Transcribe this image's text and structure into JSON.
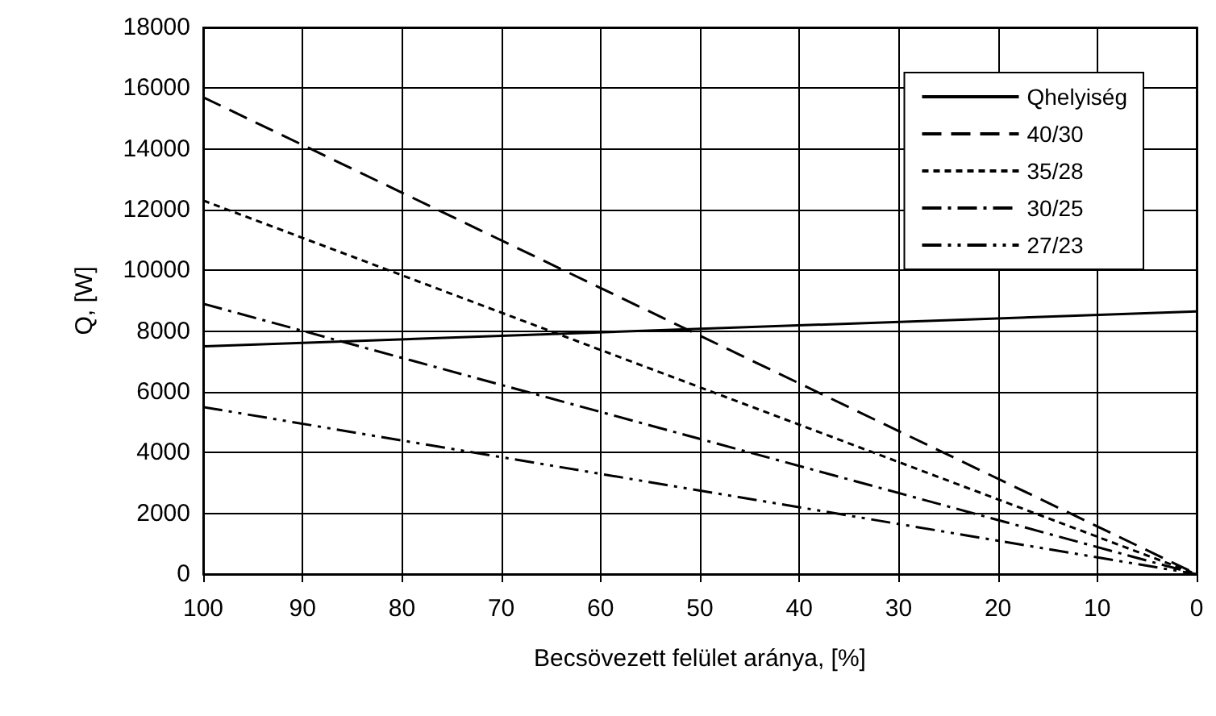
{
  "chart_data": {
    "type": "line",
    "xlabel": "Becsövezett felület aránya, [%]",
    "ylabel": "Q, [W]",
    "xlim": [
      100,
      0
    ],
    "xticks": [
      100,
      90,
      80,
      70,
      60,
      50,
      40,
      30,
      20,
      10,
      0
    ],
    "ylim": [
      0,
      18000
    ],
    "yticks": [
      0,
      2000,
      4000,
      6000,
      8000,
      10000,
      12000,
      14000,
      16000,
      18000
    ],
    "grid": true,
    "legend": "top right",
    "marker": "none",
    "x": [
      100,
      0
    ],
    "series": [
      {
        "name": "Qhelyiség",
        "color": "#000000",
        "line_style": "solid",
        "values": [
          7500,
          8650
        ]
      },
      {
        "name": "40/30",
        "color": "#000000",
        "line_style": "dashed",
        "values": [
          15700,
          0
        ]
      },
      {
        "name": "35/28",
        "color": "#000000",
        "line_style": "dotted",
        "values": [
          12300,
          0
        ]
      },
      {
        "name": "30/25",
        "color": "#000000",
        "line_style": "dashdot",
        "values": [
          8900,
          0
        ]
      },
      {
        "name": "27/23",
        "color": "#000000",
        "line_style": "dashdotdot",
        "values": [
          5500,
          0
        ]
      }
    ]
  }
}
